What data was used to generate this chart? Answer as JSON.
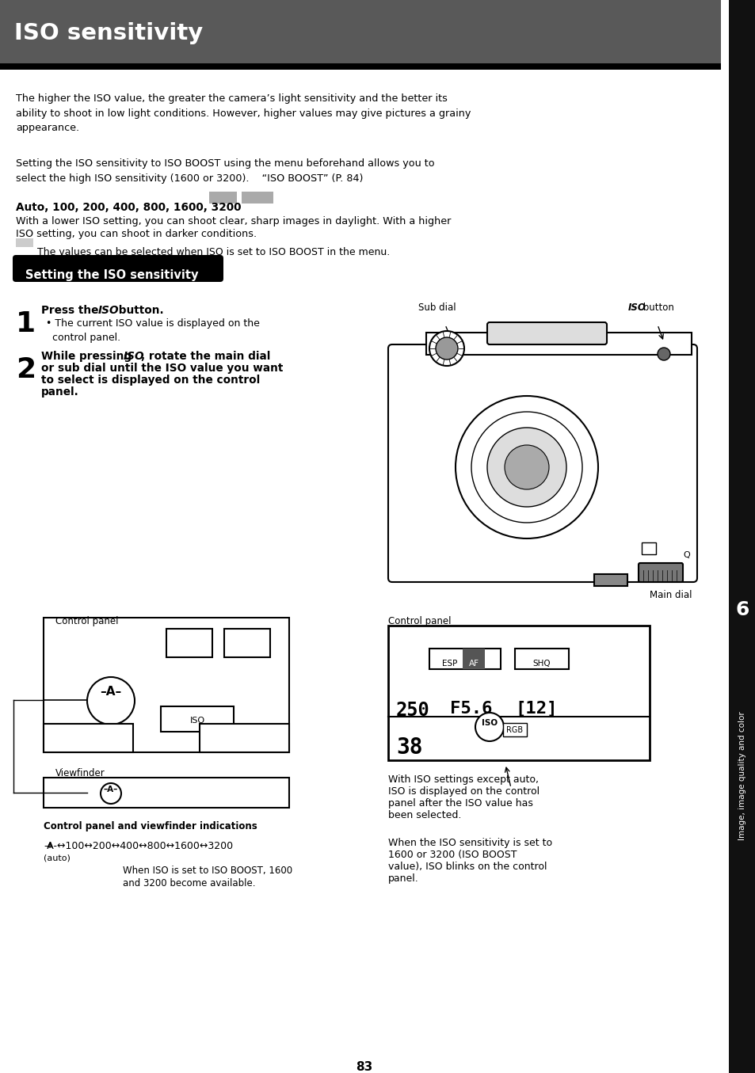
{
  "title": "ISO sensitivity",
  "title_bg": "#595959",
  "title_text_color": "#ffffff",
  "page_bg": "#ffffff",
  "page_number": "83",
  "body_text_color": "#000000",
  "para1": "The higher the ISO value, the greater the camera’s light sensitivity and the better its\nability to shoot in low light conditions. However, higher values may give pictures a grainy\nappearance.",
  "para2": "Setting the ISO sensitivity to ISO BOOST using the menu beforehand allows you to\nselect the high ISO sensitivity (1600 or 3200).    “ISO BOOST” (P. 84)",
  "bold_values": "Auto, 100, 200, 400, 800, 1600, 3200",
  "para3_l1": "With a lower ISO setting, you can shoot clear, sharp images in daylight. With a higher",
  "para3_l2": "ISO setting, you can shoot in darker conditions.",
  "gray_note": "The values can be selected when ISO is set to ISO BOOST in the menu.",
  "section_title": "Setting the ISO sensitivity",
  "step1_bullet": "• The current ISO value is displayed on the\n  control panel.",
  "sub_dial_label": "Sub dial",
  "iso_button_label": "button",
  "main_dial_label": "Main dial",
  "control_panel_label1": "Control panel",
  "control_panel_label2": "Control panel",
  "viewfinder_label": "Viewfinder",
  "cp_vf_caption": "Control panel and viewfinder indications",
  "iso_chain": "-A-↔100↔200↔400↔800↔1600↔3200",
  "iso_chain_auto": "(auto)",
  "boost_note_l1": "When ISO is set to ISO BOOST, 1600",
  "boost_note_l2": "and 3200 become available.",
  "right_text1_l1": "With ISO settings except auto,",
  "right_text1_l2": "ISO is displayed on the control",
  "right_text1_l3": "panel after the ISO value has",
  "right_text1_l4": "been selected.",
  "right_text2_l1": "When the ISO sensitivity is set to",
  "right_text2_l2": "1600 or 3200 (ISO BOOST",
  "right_text2_l3": "value), ISO blinks on the control",
  "right_text2_l4": "panel.",
  "chapter_num": "6",
  "chapter_label": "Image, image quality and color",
  "sidebar_color": "#111111",
  "highlight_color": "#aaaaaa"
}
